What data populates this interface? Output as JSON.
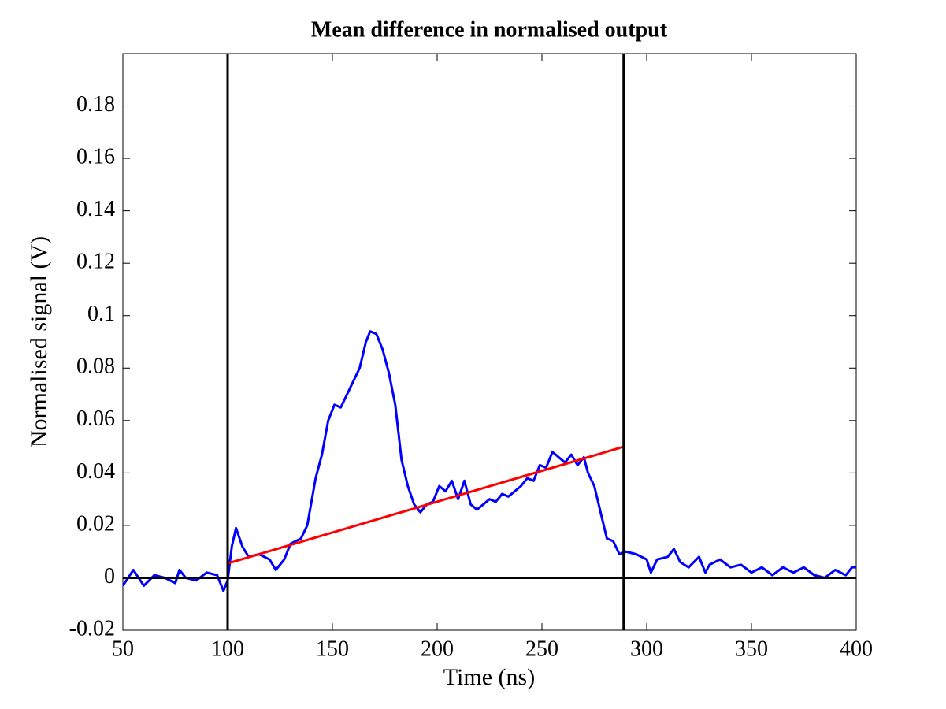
{
  "chart_data": {
    "type": "line",
    "title": "Mean difference in normalised output",
    "x_label": "Time (ns)",
    "y_label": "Normalised signal (V)",
    "xlim": [
      50,
      400
    ],
    "ylim": [
      -0.02,
      0.2
    ],
    "xticks": [
      50,
      100,
      150,
      200,
      250,
      300,
      350,
      400
    ],
    "yticks": [
      -0.02,
      0,
      0.02,
      0.04,
      0.06,
      0.08,
      0.1,
      0.12,
      0.14,
      0.16,
      0.18
    ],
    "vlines": [
      100,
      289
    ],
    "hline": 0,
    "series": [
      {
        "color": "#0000ff",
        "x": [
          50,
          55,
          60,
          65,
          70,
          75,
          77,
          80,
          85,
          90,
          95,
          98,
          100,
          102,
          104,
          107,
          110,
          115,
          120,
          123,
          127,
          130,
          135,
          138,
          142,
          145,
          148,
          151,
          154,
          157,
          160,
          163,
          166,
          168,
          171,
          174,
          177,
          180,
          183,
          186,
          189,
          192,
          195,
          198,
          201,
          204,
          207,
          210,
          213,
          216,
          219,
          222,
          225,
          228,
          231,
          234,
          237,
          240,
          243,
          246,
          249,
          252,
          255,
          258,
          261,
          264,
          267,
          270,
          272,
          275,
          278,
          281,
          284,
          287,
          290,
          295,
          300,
          302,
          305,
          310,
          313,
          316,
          320,
          325,
          328,
          330,
          335,
          340,
          345,
          350,
          355,
          360,
          365,
          370,
          375,
          380,
          385,
          390,
          395,
          398,
          400
        ],
        "values": [
          -0.003,
          0.003,
          -0.003,
          0.001,
          0.0,
          -0.002,
          0.003,
          0.0,
          -0.001,
          0.002,
          0.001,
          -0.005,
          -0.001,
          0.012,
          0.019,
          0.012,
          0.008,
          0.009,
          0.007,
          0.003,
          0.007,
          0.013,
          0.015,
          0.02,
          0.038,
          0.047,
          0.06,
          0.066,
          0.065,
          0.07,
          0.075,
          0.08,
          0.09,
          0.094,
          0.093,
          0.087,
          0.078,
          0.066,
          0.045,
          0.035,
          0.028,
          0.025,
          0.028,
          0.029,
          0.035,
          0.033,
          0.037,
          0.03,
          0.037,
          0.028,
          0.026,
          0.028,
          0.03,
          0.029,
          0.032,
          0.031,
          0.033,
          0.035,
          0.038,
          0.037,
          0.043,
          0.042,
          0.048,
          0.046,
          0.044,
          0.047,
          0.043,
          0.046,
          0.04,
          0.035,
          0.025,
          0.015,
          0.014,
          0.009,
          0.01,
          0.009,
          0.007,
          0.002,
          0.007,
          0.008,
          0.011,
          0.006,
          0.004,
          0.008,
          0.002,
          0.005,
          0.007,
          0.004,
          0.005,
          0.002,
          0.004,
          0.001,
          0.004,
          0.002,
          0.004,
          0.001,
          0.0,
          0.003,
          0.001,
          0.004,
          0.004
        ]
      },
      {
        "color": "#ff0000",
        "x": [
          100,
          289
        ],
        "values": [
          0.0055,
          0.05
        ]
      }
    ]
  }
}
